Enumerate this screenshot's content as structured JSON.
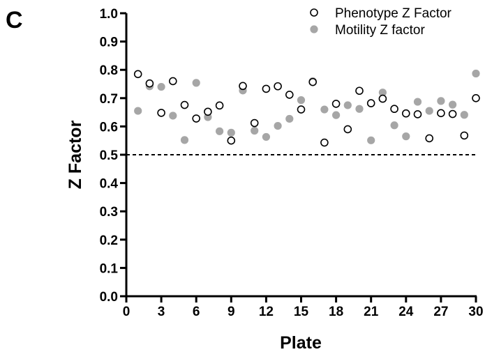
{
  "panel_label": "C",
  "chart_data": {
    "type": "scatter",
    "xlabel": "Plate",
    "ylabel": "Z Factor",
    "xlim": [
      0,
      30
    ],
    "ylim": [
      0.0,
      1.0
    ],
    "x_ticks": [
      "0",
      "3",
      "6",
      "9",
      "12",
      "15",
      "18",
      "21",
      "24",
      "27",
      "30"
    ],
    "y_ticks": [
      "0.0",
      "0.1",
      "0.2",
      "0.3",
      "0.4",
      "0.5",
      "0.6",
      "0.7",
      "0.8",
      "0.9",
      "1.0"
    ],
    "reference_line": {
      "y": 0.5,
      "style": "dashed"
    },
    "legend_position": "top-right",
    "grid": false,
    "series": [
      {
        "name": "Phenotype Z Factor",
        "marker": "open-circle",
        "color": "#000000",
        "x": [
          1,
          2,
          3,
          4,
          5,
          6,
          7,
          8,
          9,
          10,
          11,
          12,
          13,
          14,
          15,
          16,
          17,
          18,
          19,
          20,
          21,
          22,
          23,
          24,
          25,
          26,
          27,
          28,
          29,
          30
        ],
        "y": [
          0.785,
          0.752,
          0.648,
          0.76,
          0.676,
          0.628,
          0.652,
          0.674,
          0.55,
          0.743,
          0.612,
          0.733,
          0.742,
          0.712,
          0.66,
          0.757,
          0.543,
          0.68,
          0.59,
          0.726,
          0.682,
          0.698,
          0.662,
          0.646,
          0.643,
          0.558,
          0.647,
          0.644,
          0.568,
          0.7
        ]
      },
      {
        "name": "Motility Z factor",
        "marker": "filled-circle",
        "color": "#a6a6a6",
        "x": [
          1,
          2,
          3,
          4,
          5,
          6,
          7,
          8,
          9,
          10,
          11,
          12,
          13,
          14,
          15,
          16,
          17,
          18,
          19,
          20,
          21,
          22,
          23,
          24,
          25,
          26,
          27,
          28,
          29,
          30
        ],
        "y": [
          0.655,
          0.742,
          0.74,
          0.638,
          0.552,
          0.754,
          0.633,
          0.583,
          0.578,
          0.727,
          0.585,
          0.563,
          0.602,
          0.627,
          0.693,
          0.76,
          0.66,
          0.64,
          0.675,
          0.662,
          0.551,
          0.72,
          0.604,
          0.565,
          0.687,
          0.655,
          0.69,
          0.677,
          0.641,
          0.787
        ]
      }
    ]
  }
}
